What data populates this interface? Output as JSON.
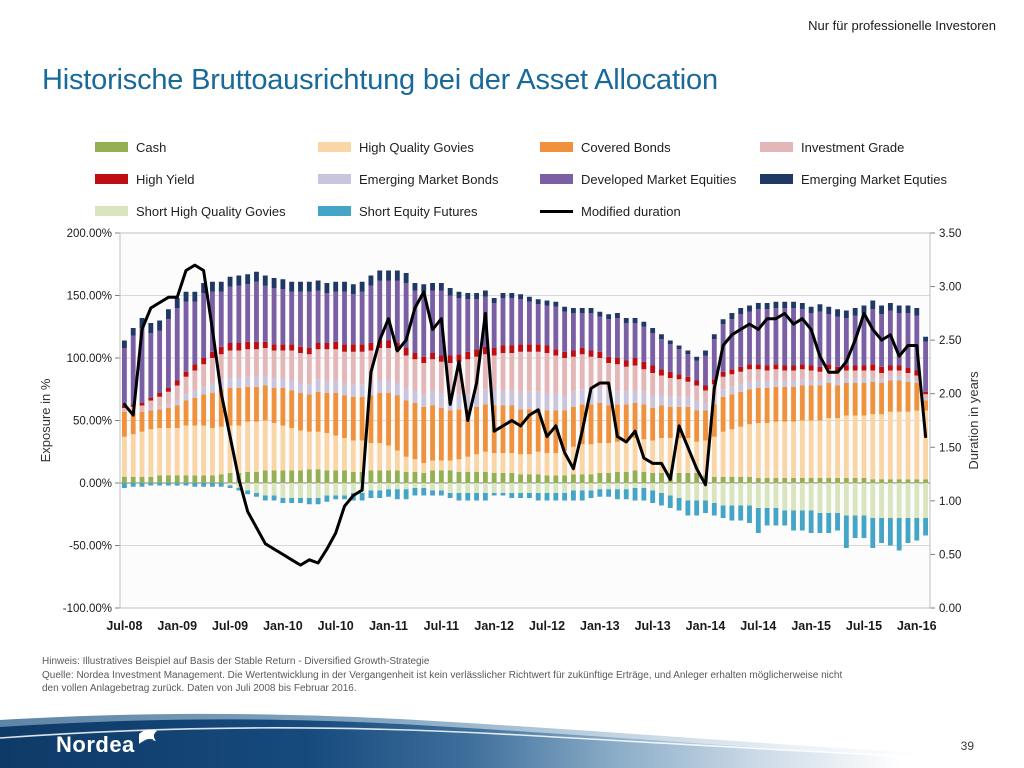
{
  "header": {
    "classification": "Nur für professionelle Investoren"
  },
  "title": "Historische Bruttoausrichtung bei der Asset Allocation",
  "footnotes": {
    "line1": "Hinweis: Illustratives Beispiel auf Basis der Stable Return - Diversified Growth-Strategie",
    "line2": "Quelle: Nordea Investment Management. Die Wertentwicklung in der Vergangenheit ist kein verlässlicher Richtwert für zukünftige Erträge, und Anleger erhalten möglicherweise nicht",
    "line3": "den vollen Anlagebetrag zurück. Daten von Juli 2008 bis Februar 2016."
  },
  "logo": {
    "text": "Nordea"
  },
  "page_number": "39",
  "chart_data": {
    "type": "combo-stacked-bar-line",
    "n_months": 92,
    "start_month": "Jul-08",
    "end_month": "Feb-16",
    "x_tick_labels": [
      "Jul-08",
      "Jan-09",
      "Jul-09",
      "Jan-10",
      "Jul-10",
      "Jan-11",
      "Jul-11",
      "Jan-12",
      "Jul-12",
      "Jan-13",
      "Jul-13",
      "Jan-14",
      "Jul-14",
      "Jan-15",
      "Jul-15",
      "Jan-16"
    ],
    "x_tick_every": 6,
    "ylabel_left": "Exposure in %",
    "ylabel_right": "Duration in years",
    "y_left": {
      "min": -100,
      "max": 200,
      "step": 50,
      "suffix": "%",
      "decimals": 2
    },
    "y_right": {
      "min": 0,
      "max": 3.5,
      "step": 0.5,
      "decimals": 2
    },
    "grid_color": "#D9D9D9",
    "zero_line_color": "#808080",
    "border_color": "#BFBFBF",
    "legend_layout": {
      "cols": [
        95,
        318,
        540,
        760
      ],
      "rows": [
        140,
        172,
        204
      ]
    },
    "legend": [
      {
        "label": "Cash",
        "color": "#94B052",
        "type": "box",
        "col": 0,
        "row": 0
      },
      {
        "label": "High Quality Govies",
        "color": "#FAD5A5",
        "type": "box",
        "col": 1,
        "row": 0
      },
      {
        "label": "Covered Bonds",
        "color": "#F0913D",
        "type": "box",
        "col": 2,
        "row": 0
      },
      {
        "label": "Investment Grade",
        "color": "#E3B7B7",
        "type": "box",
        "col": 3,
        "row": 0
      },
      {
        "label": "High Yield",
        "color": "#BE0E12",
        "type": "box",
        "col": 0,
        "row": 1
      },
      {
        "label": "Emerging Market Bonds",
        "color": "#C9C5DF",
        "type": "box",
        "col": 1,
        "row": 1
      },
      {
        "label": "Developed Market Equities",
        "color": "#7B5FA5",
        "type": "box",
        "col": 2,
        "row": 1
      },
      {
        "label": "Emerging Market Equties",
        "color": "#1F3864",
        "type": "box",
        "col": 3,
        "row": 1
      },
      {
        "label": "Short High Quality Govies",
        "color": "#D8E5BE",
        "type": "box",
        "col": 0,
        "row": 2
      },
      {
        "label": "Short Equity Futures",
        "color": "#45A5C7",
        "type": "box",
        "col": 1,
        "row": 2
      },
      {
        "label": "Modified duration",
        "color": "#000000",
        "type": "line",
        "col": 2,
        "row": 2
      }
    ],
    "series": [
      {
        "name": "Cash",
        "color": "#94B052",
        "values": [
          5,
          5,
          5,
          5,
          6,
          6,
          6,
          6,
          6,
          6,
          6,
          7,
          8,
          8,
          9,
          9,
          10,
          10,
          10,
          10,
          10,
          11,
          11,
          10,
          10,
          10,
          9,
          9,
          10,
          10,
          10,
          10,
          9,
          9,
          8,
          10,
          10,
          10,
          9,
          9,
          9,
          9,
          8,
          8,
          8,
          7,
          7,
          7,
          6,
          6,
          6,
          7,
          7,
          7,
          8,
          8,
          9,
          9,
          10,
          9,
          8,
          8,
          8,
          8,
          8,
          8,
          6,
          5,
          5,
          5,
          5,
          5,
          4,
          4,
          4,
          4,
          4,
          4,
          4,
          4,
          4,
          4,
          4,
          4,
          4,
          3,
          3,
          3,
          3,
          3,
          3,
          3
        ]
      },
      {
        "name": "High Quality Govies",
        "color": "#FAD5A5",
        "values": [
          32,
          34,
          36,
          38,
          38,
          38,
          38,
          40,
          40,
          40,
          38,
          38,
          38,
          38,
          40,
          40,
          40,
          38,
          36,
          34,
          32,
          30,
          30,
          30,
          28,
          26,
          25,
          25,
          22,
          22,
          20,
          16,
          12,
          10,
          8,
          8,
          8,
          8,
          10,
          12,
          14,
          16,
          16,
          16,
          16,
          16,
          16,
          18,
          18,
          18,
          20,
          22,
          24,
          24,
          24,
          24,
          24,
          26,
          26,
          26,
          26,
          28,
          28,
          28,
          28,
          25,
          28,
          32,
          36,
          38,
          40,
          42,
          44,
          44,
          45,
          45,
          45,
          46,
          46,
          46,
          48,
          48,
          50,
          50,
          50,
          52,
          52,
          54,
          54,
          54,
          55,
          55
        ]
      },
      {
        "name": "Covered Bonds",
        "color": "#F0913D",
        "values": [
          20,
          18,
          16,
          15,
          15,
          16,
          18,
          20,
          22,
          25,
          28,
          30,
          30,
          30,
          28,
          28,
          28,
          28,
          30,
          30,
          30,
          30,
          32,
          32,
          34,
          34,
          35,
          35,
          38,
          40,
          42,
          44,
          45,
          45,
          45,
          44,
          42,
          40,
          40,
          38,
          38,
          38,
          38,
          38,
          38,
          36,
          36,
          34,
          34,
          34,
          32,
          32,
          32,
          32,
          32,
          30,
          30,
          28,
          28,
          28,
          26,
          26,
          25,
          25,
          25,
          25,
          24,
          26,
          28,
          28,
          28,
          28,
          28,
          28,
          28,
          28,
          28,
          28,
          28,
          28,
          28,
          26,
          26,
          26,
          26,
          26,
          25,
          25,
          25,
          24,
          22,
          8
        ]
      },
      {
        "name": "Emerging Market Bonds",
        "color": "#C9C5DF",
        "values": [
          0,
          0,
          0,
          2,
          2,
          3,
          4,
          5,
          6,
          6,
          8,
          8,
          8,
          8,
          8,
          8,
          8,
          8,
          8,
          8,
          8,
          8,
          10,
          10,
          10,
          10,
          10,
          10,
          10,
          10,
          10,
          10,
          10,
          10,
          10,
          12,
          12,
          12,
          12,
          12,
          12,
          12,
          12,
          12,
          12,
          14,
          14,
          14,
          14,
          14,
          12,
          12,
          12,
          12,
          12,
          12,
          10,
          10,
          10,
          10,
          10,
          8,
          8,
          8,
          8,
          8,
          6,
          6,
          6,
          6,
          6,
          6,
          6,
          5,
          5,
          5,
          5,
          5,
          4,
          4,
          4,
          4,
          4,
          4,
          4,
          3,
          3,
          3,
          3,
          3,
          2,
          2
        ]
      },
      {
        "name": "Investment Grade",
        "color": "#E3B7B7",
        "values": [
          3,
          4,
          5,
          6,
          8,
          10,
          12,
          14,
          16,
          18,
          20,
          20,
          22,
          22,
          22,
          22,
          22,
          22,
          22,
          24,
          24,
          24,
          24,
          25,
          25,
          25,
          26,
          26,
          26,
          26,
          26,
          26,
          26,
          25,
          25,
          25,
          25,
          26,
          26,
          28,
          28,
          28,
          28,
          30,
          30,
          32,
          32,
          32,
          32,
          30,
          30,
          28,
          28,
          26,
          24,
          22,
          22,
          20,
          20,
          18,
          18,
          16,
          15,
          14,
          12,
          12,
          10,
          10,
          10,
          10,
          10,
          10,
          9,
          9,
          9,
          8,
          8,
          8,
          8,
          7,
          7,
          7,
          6,
          6,
          6,
          6,
          5,
          5,
          5,
          4,
          4,
          3
        ]
      },
      {
        "name": "High Yield",
        "color": "#BE0E12",
        "values": [
          2,
          2,
          2,
          2,
          3,
          3,
          4,
          4,
          5,
          5,
          5,
          6,
          6,
          6,
          6,
          6,
          5,
          5,
          5,
          5,
          5,
          5,
          5,
          5,
          6,
          6,
          6,
          6,
          6,
          6,
          6,
          6,
          6,
          5,
          5,
          5,
          5,
          6,
          6,
          6,
          6,
          6,
          6,
          6,
          6,
          6,
          6,
          6,
          6,
          5,
          5,
          5,
          5,
          5,
          5,
          5,
          5,
          5,
          6,
          6,
          6,
          5,
          5,
          4,
          4,
          4,
          4,
          4,
          4,
          4,
          4,
          4,
          4,
          4,
          4,
          4,
          4,
          4,
          4,
          4,
          4,
          4,
          4,
          4,
          4,
          5,
          5,
          4,
          4,
          4,
          4,
          2
        ]
      },
      {
        "name": "Developed Market Equities",
        "color": "#7B5FA5",
        "values": [
          46,
          55,
          60,
          52,
          50,
          55,
          58,
          56,
          50,
          52,
          48,
          44,
          45,
          46,
          46,
          48,
          45,
          45,
          44,
          42,
          44,
          45,
          42,
          40,
          40,
          42,
          40,
          42,
          46,
          48,
          48,
          50,
          52,
          50,
          52,
          50,
          52,
          48,
          45,
          42,
          40,
          40,
          36,
          38,
          38,
          36,
          34,
          32,
          32,
          34,
          32,
          30,
          28,
          30,
          28,
          30,
          32,
          30,
          28,
          28,
          26,
          24,
          22,
          20,
          18,
          16,
          24,
          32,
          38,
          40,
          42,
          42,
          44,
          45,
          45,
          46,
          46,
          44,
          42,
          44,
          40,
          40,
          38,
          40,
          42,
          44,
          42,
          44,
          42,
          44,
          44,
          40
        ]
      },
      {
        "name": "Emerging Market Equties",
        "color": "#1F3864",
        "values": [
          6,
          6,
          8,
          8,
          8,
          8,
          8,
          8,
          8,
          8,
          8,
          8,
          8,
          8,
          8,
          8,
          8,
          8,
          8,
          8,
          8,
          8,
          8,
          8,
          8,
          8,
          8,
          8,
          8,
          8,
          8,
          8,
          8,
          6,
          6,
          6,
          6,
          6,
          5,
          5,
          5,
          5,
          4,
          4,
          4,
          4,
          4,
          4,
          4,
          4,
          4,
          4,
          4,
          4,
          4,
          4,
          4,
          4,
          4,
          4,
          4,
          4,
          3,
          3,
          3,
          3,
          4,
          4,
          4,
          5,
          5,
          5,
          5,
          5,
          5,
          5,
          5,
          5,
          5,
          6,
          6,
          6,
          6,
          6,
          6,
          7,
          7,
          6,
          6,
          6,
          6,
          4
        ]
      },
      {
        "name": "Short High Quality Govies",
        "color": "#D8E5BE",
        "values": [
          0,
          0,
          0,
          0,
          0,
          0,
          0,
          0,
          0,
          0,
          0,
          0,
          -2,
          -4,
          -6,
          -8,
          -10,
          -10,
          -12,
          -12,
          -12,
          -12,
          -12,
          -10,
          -10,
          -10,
          -8,
          -8,
          -6,
          -6,
          -5,
          -5,
          -5,
          -4,
          -4,
          -6,
          -6,
          -8,
          -8,
          -8,
          -8,
          -8,
          -8,
          -8,
          -8,
          -8,
          -8,
          -8,
          -8,
          -8,
          -8,
          -6,
          -6,
          -6,
          -5,
          -5,
          -5,
          -5,
          -4,
          -4,
          -6,
          -8,
          -10,
          -12,
          -14,
          -14,
          -14,
          -16,
          -18,
          -18,
          -18,
          -18,
          -20,
          -20,
          -20,
          -22,
          -22,
          -22,
          -22,
          -24,
          -24,
          -24,
          -26,
          -26,
          -26,
          -28,
          -28,
          -28,
          -28,
          -28,
          -28,
          -28
        ]
      },
      {
        "name": "Short Equity Futures",
        "color": "#45A5C7",
        "values": [
          -4,
          -3,
          -3,
          -2,
          -2,
          -2,
          -2,
          -2,
          -3,
          -3,
          -3,
          -3,
          -2,
          -2,
          -3,
          -3,
          -4,
          -4,
          -4,
          -4,
          -4,
          -5,
          -5,
          -5,
          -3,
          -3,
          -6,
          -6,
          -6,
          -6,
          -6,
          -8,
          -8,
          -6,
          -6,
          -4,
          -4,
          -4,
          -6,
          -6,
          -6,
          -6,
          -2,
          -2,
          -4,
          -4,
          -4,
          -6,
          -6,
          -6,
          -6,
          -8,
          -8,
          -6,
          -6,
          -6,
          -8,
          -8,
          -10,
          -10,
          -10,
          -10,
          -10,
          -10,
          -12,
          -12,
          -10,
          -10,
          -10,
          -12,
          -12,
          -14,
          -20,
          -14,
          -14,
          -12,
          -16,
          -16,
          -18,
          -16,
          -16,
          -14,
          -26,
          -18,
          -18,
          -24,
          -20,
          -22,
          -26,
          -20,
          -18,
          -14
        ]
      }
    ],
    "line": {
      "name": "Modified duration",
      "color": "#000000",
      "width": 3,
      "values": [
        1.9,
        1.8,
        2.6,
        2.8,
        2.85,
        2.9,
        2.9,
        3.15,
        3.2,
        3.15,
        2.6,
        2.0,
        1.6,
        1.2,
        0.9,
        0.75,
        0.6,
        0.55,
        0.5,
        0.45,
        0.4,
        0.45,
        0.42,
        0.55,
        0.7,
        0.95,
        1.05,
        1.1,
        2.2,
        2.5,
        2.7,
        2.4,
        2.5,
        2.8,
        2.95,
        2.6,
        2.7,
        1.9,
        2.3,
        1.75,
        2.1,
        2.75,
        1.65,
        1.7,
        1.75,
        1.7,
        1.8,
        1.85,
        1.6,
        1.7,
        1.45,
        1.3,
        1.65,
        2.05,
        2.1,
        2.1,
        1.6,
        1.55,
        1.65,
        1.4,
        1.35,
        1.35,
        1.2,
        1.7,
        1.5,
        1.3,
        1.15,
        2.05,
        2.45,
        2.55,
        2.6,
        2.65,
        2.6,
        2.7,
        2.7,
        2.75,
        2.65,
        2.7,
        2.6,
        2.35,
        2.2,
        2.2,
        2.3,
        2.5,
        2.75,
        2.6,
        2.5,
        2.55,
        2.35,
        2.45,
        2.45,
        1.6
      ]
    }
  }
}
